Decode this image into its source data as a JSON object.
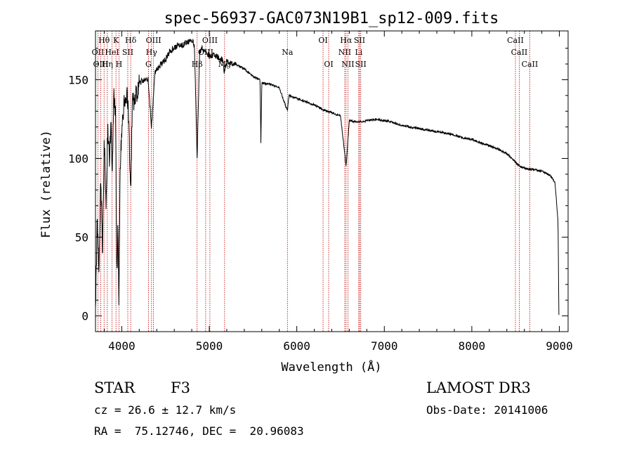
{
  "chart_data": {
    "type": "line",
    "title": "spec-56937-GAC073N19B1_sp12-009.fits",
    "xlabel": "Wavelength (Å)",
    "ylabel": "Flux (relative)",
    "xlim": [
      3700,
      9100
    ],
    "ylim": [
      -10,
      181
    ],
    "xticks": [
      4000,
      5000,
      6000,
      7000,
      8000,
      9000
    ],
    "xtick_labels": [
      "4000",
      "5000",
      "6000",
      "7000",
      "8000",
      "9000"
    ],
    "yticks": [
      0,
      50,
      100,
      150
    ],
    "ytick_labels": [
      "0",
      "50",
      "100",
      "150"
    ],
    "series": [
      {
        "name": "spectrum",
        "anchors": [
          [
            3700,
            5
          ],
          [
            3720,
            60
          ],
          [
            3740,
            30
          ],
          [
            3760,
            90
          ],
          [
            3780,
            40
          ],
          [
            3800,
            110
          ],
          [
            3820,
            70
          ],
          [
            3840,
            120
          ],
          [
            3860,
            100
          ],
          [
            3880,
            125
          ],
          [
            3890,
            85
          ],
          [
            3910,
            140
          ],
          [
            3930,
            130
          ],
          [
            3945,
            20
          ],
          [
            3955,
            60
          ],
          [
            3968,
            10
          ],
          [
            3980,
            90
          ],
          [
            4000,
            120
          ],
          [
            4030,
            135
          ],
          [
            4060,
            140
          ],
          [
            4080,
            125
          ],
          [
            4101,
            75
          ],
          [
            4120,
            135
          ],
          [
            4160,
            140
          ],
          [
            4200,
            148
          ],
          [
            4250,
            150
          ],
          [
            4300,
            150
          ],
          [
            4340,
            120
          ],
          [
            4380,
            155
          ],
          [
            4450,
            160
          ],
          [
            4500,
            163
          ],
          [
            4550,
            168
          ],
          [
            4600,
            170
          ],
          [
            4650,
            172
          ],
          [
            4700,
            172
          ],
          [
            4750,
            174
          ],
          [
            4800,
            175
          ],
          [
            4830,
            172
          ],
          [
            4861,
            100
          ],
          [
            4890,
            168
          ],
          [
            4920,
            170
          ],
          [
            4960,
            168
          ],
          [
            5000,
            165
          ],
          [
            5050,
            166
          ],
          [
            5100,
            164
          ],
          [
            5150,
            163
          ],
          [
            5172,
            155
          ],
          [
            5200,
            162
          ],
          [
            5300,
            160
          ],
          [
            5400,
            157
          ],
          [
            5500,
            152
          ],
          [
            5580,
            150
          ],
          [
            5590,
            110
          ],
          [
            5600,
            148
          ],
          [
            5700,
            147
          ],
          [
            5800,
            145
          ],
          [
            5893,
            130
          ],
          [
            5910,
            140
          ],
          [
            6000,
            138
          ],
          [
            6100,
            136
          ],
          [
            6200,
            134
          ],
          [
            6300,
            131
          ],
          [
            6400,
            129
          ],
          [
            6500,
            127
          ],
          [
            6563,
            95
          ],
          [
            6600,
            124
          ],
          [
            6700,
            123
          ],
          [
            6800,
            124
          ],
          [
            6900,
            125
          ],
          [
            7000,
            124
          ],
          [
            7100,
            123
          ],
          [
            7200,
            121
          ],
          [
            7300,
            120
          ],
          [
            7400,
            119
          ],
          [
            7500,
            118
          ],
          [
            7600,
            117
          ],
          [
            7700,
            116
          ],
          [
            7800,
            115
          ],
          [
            7900,
            113
          ],
          [
            8000,
            112
          ],
          [
            8100,
            110
          ],
          [
            8200,
            108
          ],
          [
            8300,
            106
          ],
          [
            8400,
            103
          ],
          [
            8498,
            98
          ],
          [
            8542,
            95
          ],
          [
            8600,
            94
          ],
          [
            8662,
            93
          ],
          [
            8700,
            93
          ],
          [
            8800,
            92
          ],
          [
            8900,
            89
          ],
          [
            8950,
            85
          ],
          [
            8985,
            60
          ],
          [
            8995,
            0
          ]
        ]
      }
    ],
    "spectral_lines": [
      {
        "label": "Hθ",
        "x": 3798,
        "row": 0
      },
      {
        "label": "K",
        "x": 3934,
        "row": 0
      },
      {
        "label": "Hδ",
        "x": 4102,
        "row": 0
      },
      {
        "label": "OIII",
        "x": 4363,
        "row": 0
      },
      {
        "label": "OIII",
        "x": 5007,
        "row": 0
      },
      {
        "label": "OI",
        "x": 6300,
        "row": 0
      },
      {
        "label": "Hα",
        "x": 6563,
        "row": 0
      },
      {
        "label": "SII",
        "x": 6717,
        "row": 0
      },
      {
        "label": "CaII",
        "x": 8498,
        "row": 0
      },
      {
        "label": "OII",
        "x": 3727,
        "row": 1
      },
      {
        "label": "HeI",
        "x": 3889,
        "row": 1
      },
      {
        "label": "SII",
        "x": 4069,
        "row": 1
      },
      {
        "label": "Hγ",
        "x": 4340,
        "row": 1
      },
      {
        "label": "OIII",
        "x": 4959,
        "row": 1
      },
      {
        "label": "Na",
        "x": 5893,
        "row": 1
      },
      {
        "label": "NII",
        "x": 6548,
        "row": 1
      },
      {
        "label": "Li",
        "x": 6708,
        "row": 1
      },
      {
        "label": "CaII",
        "x": 8542,
        "row": 1
      },
      {
        "label": "OIII",
        "x": 3760,
        "row": 2
      },
      {
        "label": "Hη",
        "x": 3835,
        "row": 2
      },
      {
        "label": "H",
        "x": 3968,
        "row": 2
      },
      {
        "label": "G",
        "x": 4305,
        "row": 2
      },
      {
        "label": "Hβ",
        "x": 4861,
        "row": 2
      },
      {
        "label": "Mg",
        "x": 5175,
        "row": 2
      },
      {
        "label": "OI",
        "x": 6364,
        "row": 2
      },
      {
        "label": "NII",
        "x": 6584,
        "row": 2
      },
      {
        "label": "SII",
        "x": 6731,
        "row": 2
      },
      {
        "label": "CaII",
        "x": 8662,
        "row": 2
      }
    ]
  },
  "info": {
    "object_class": "STAR",
    "subclass": "F3",
    "survey": "LAMOST DR3",
    "cz": "cz = 26.6 ± 12.7 km/s",
    "obs_date": "Obs-Date: 20141006",
    "coords": "RA =  75.12746, DEC =  20.96083"
  },
  "colors": {
    "line_marker": "#c00000",
    "spectrum": "#000000",
    "axes": "#000000",
    "background": "#ffffff"
  }
}
